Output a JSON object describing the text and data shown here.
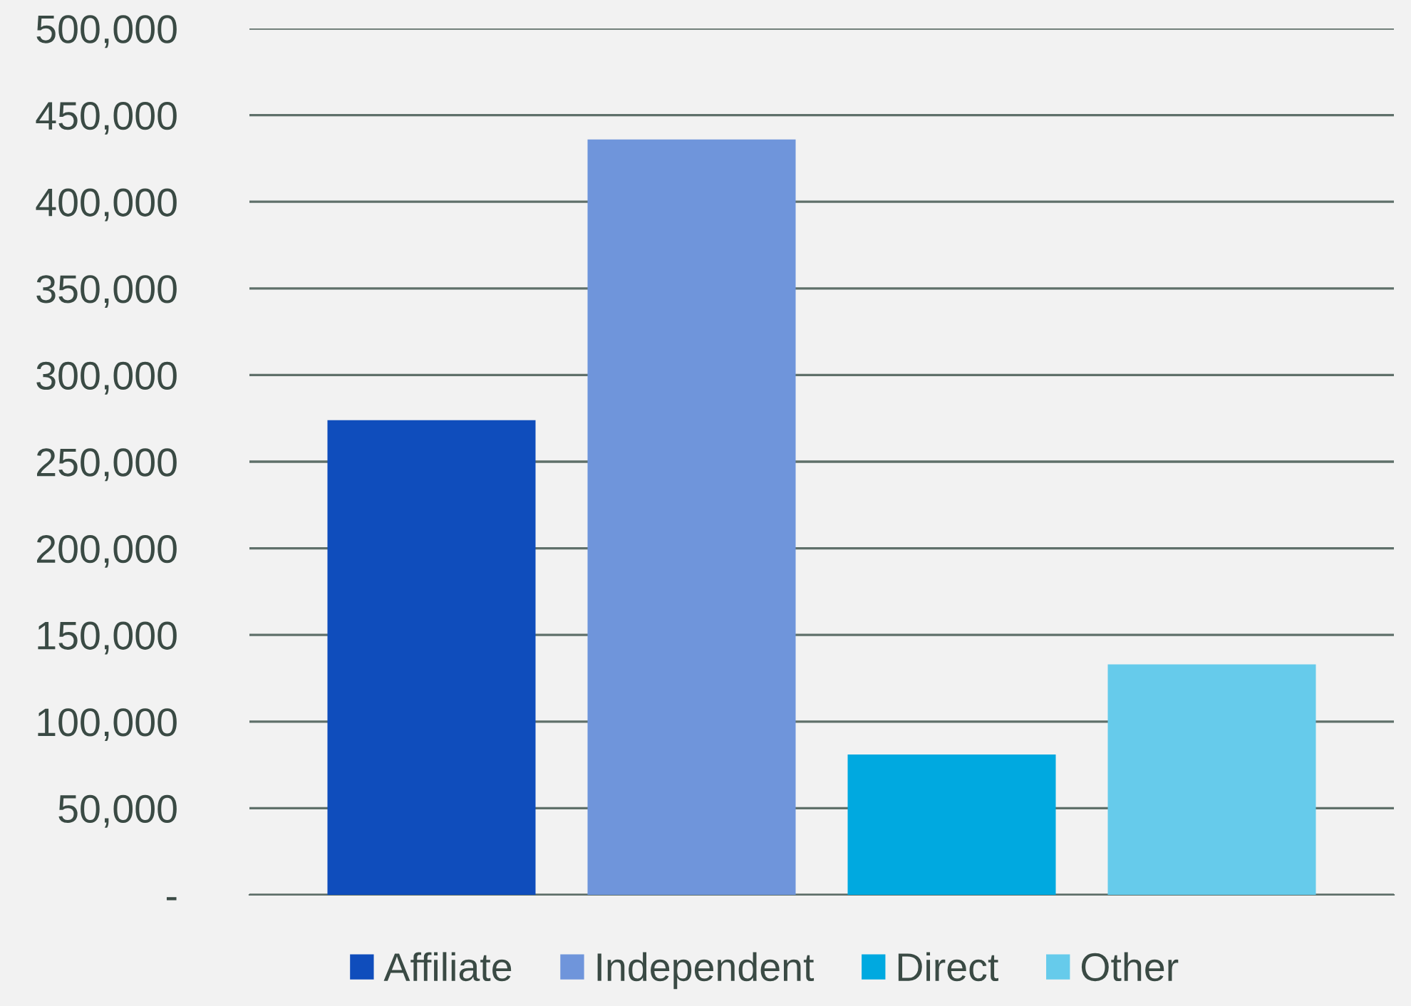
{
  "chart_data": {
    "type": "bar",
    "categories": [
      null,
      null,
      null,
      null
    ],
    "series": [
      {
        "name": "Affiliate",
        "color": "#0f4dbc",
        "values": [
          274000,
          null,
          null,
          null
        ]
      },
      {
        "name": "Independent",
        "color": "#6f95db",
        "values": [
          null,
          436000,
          null,
          null
        ]
      },
      {
        "name": "Direct",
        "color": "#00a9e0",
        "values": [
          null,
          null,
          81000,
          null
        ]
      },
      {
        "name": "Other",
        "color": "#66cbeb",
        "values": [
          null,
          null,
          null,
          133000
        ]
      }
    ],
    "ylim": [
      0,
      500000
    ],
    "yticks": [
      {
        "value": 0,
        "label": "-"
      },
      {
        "value": 50000,
        "label": "50,000"
      },
      {
        "value": 100000,
        "label": "100,000"
      },
      {
        "value": 150000,
        "label": "150,000"
      },
      {
        "value": 200000,
        "label": "200,000"
      },
      {
        "value": 250000,
        "label": "250,000"
      },
      {
        "value": 300000,
        "label": "300,000"
      },
      {
        "value": 350000,
        "label": "350,000"
      },
      {
        "value": 400000,
        "label": "400,000"
      },
      {
        "value": 450000,
        "label": "450,000"
      },
      {
        "value": 500000,
        "label": "500,000"
      }
    ],
    "grid": "y",
    "legend": "bottom",
    "tick_labels": "y"
  }
}
